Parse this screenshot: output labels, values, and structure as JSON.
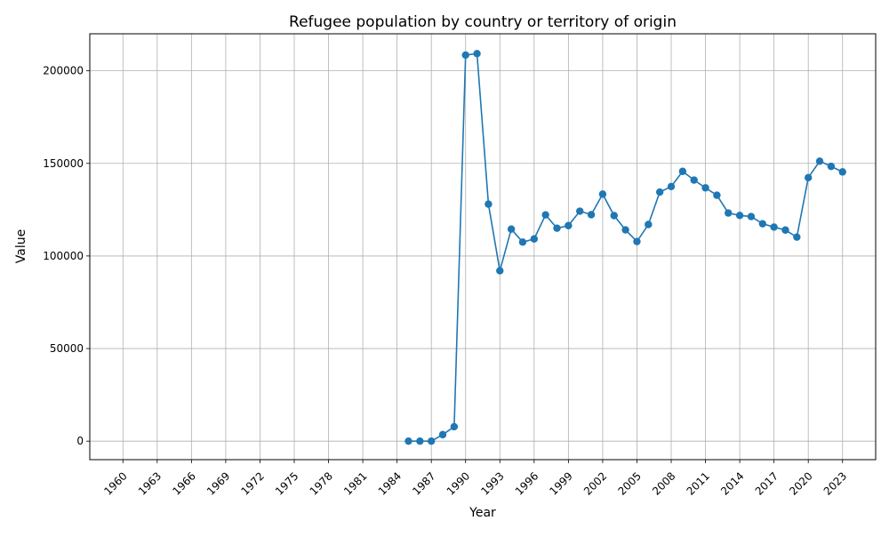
{
  "chart_data": {
    "type": "line",
    "title": "Refugee population by country or territory of origin",
    "xlabel": "Year",
    "ylabel": "Value",
    "xlim": [
      1960,
      2023
    ],
    "ylim": [
      -10000,
      220000
    ],
    "x_ticks": [
      "1960",
      "1963",
      "1966",
      "1969",
      "1972",
      "1975",
      "1978",
      "1981",
      "1984",
      "1987",
      "1990",
      "1993",
      "1996",
      "1999",
      "2002",
      "2005",
      "2008",
      "2011",
      "2014",
      "2017",
      "2020",
      "2023"
    ],
    "y_ticks": [
      "0",
      "50000",
      "100000",
      "150000",
      "200000"
    ],
    "grid": true,
    "line_color": "#1f77b4",
    "series": [
      {
        "x": [
          1985,
          1986,
          1987,
          1988,
          1989,
          1990,
          1991,
          1992,
          1993,
          1994,
          1995,
          1996,
          1997,
          1998,
          1999,
          2000,
          2001,
          2002,
          2003,
          2004,
          2005,
          2006,
          2007,
          2008,
          2009,
          2010,
          2011,
          2012,
          2013,
          2014,
          2015,
          2016,
          2017,
          2018,
          2019,
          2020,
          2021,
          2022,
          2023
        ],
        "values": [
          0,
          0,
          0,
          3500,
          7800,
          208500,
          209300,
          128000,
          92000,
          114500,
          107500,
          109200,
          122200,
          115000,
          116400,
          124200,
          122300,
          133400,
          121800,
          114100,
          107800,
          117000,
          134500,
          137500,
          145700,
          141000,
          136800,
          132800,
          123200,
          121900,
          121300,
          117400,
          115600,
          114000,
          110200,
          142300,
          151200,
          148400,
          145400
        ]
      }
    ]
  }
}
